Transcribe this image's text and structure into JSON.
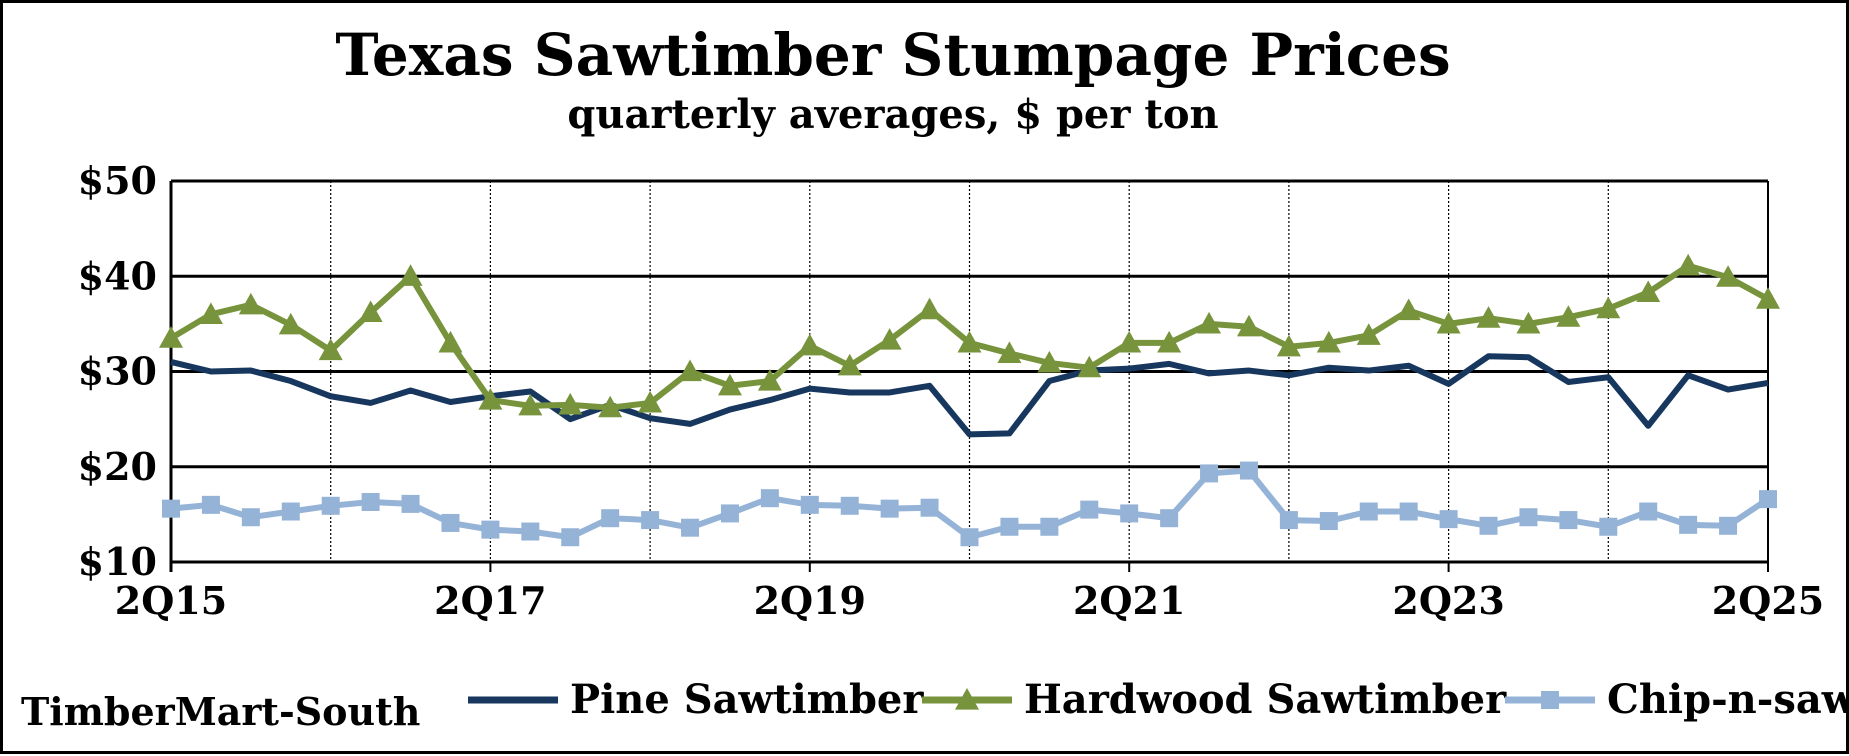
{
  "chart_data": {
    "type": "line",
    "title": "Texas Sawtimber Stumpage Prices",
    "subtitle": "quarterly averages, $ per ton",
    "source": "TimberMart-South",
    "ylim": [
      10,
      50
    ],
    "yticks": [
      10,
      20,
      30,
      40,
      50
    ],
    "ytick_labels": [
      "$10",
      "$20",
      "$30",
      "$40",
      "$50"
    ],
    "xtick_labels": [
      "2Q15",
      "2Q17",
      "2Q19",
      "2Q21",
      "2Q23",
      "2Q25"
    ],
    "x": [
      "2Q15",
      "3Q15",
      "4Q15",
      "1Q16",
      "2Q16",
      "3Q16",
      "4Q16",
      "1Q17",
      "2Q17",
      "3Q17",
      "4Q17",
      "1Q18",
      "2Q18",
      "3Q18",
      "4Q18",
      "1Q19",
      "2Q19",
      "3Q19",
      "4Q19",
      "1Q20",
      "2Q20",
      "3Q20",
      "4Q20",
      "1Q21",
      "2Q21",
      "3Q21",
      "4Q21",
      "1Q22",
      "2Q22",
      "3Q22",
      "4Q22",
      "1Q23",
      "2Q23",
      "3Q23",
      "4Q23",
      "1Q24",
      "2Q24",
      "3Q24",
      "4Q24",
      "1Q25",
      "2Q25"
    ],
    "grid": "horizontal solid; vertical dotted at each year",
    "legend_position": "bottom",
    "series": [
      {
        "name": "Pine Sawtimber",
        "color": "#17375e",
        "marker": "none",
        "values": [
          31.0,
          30.0,
          30.1,
          29.0,
          27.4,
          26.7,
          28.0,
          26.8,
          27.4,
          27.9,
          25.0,
          26.5,
          25.1,
          24.5,
          26.0,
          27.0,
          28.2,
          27.8,
          27.8,
          28.5,
          23.4,
          23.5,
          29.0,
          30.1,
          30.3,
          30.8,
          29.8,
          30.1,
          29.6,
          30.4,
          30.1,
          30.6,
          28.7,
          31.6,
          31.5,
          28.9,
          29.4,
          24.3,
          29.6,
          28.1,
          28.8
        ]
      },
      {
        "name": "Hardwood Sawtimber",
        "color": "#77933c",
        "marker": "triangle",
        "values": [
          33.5,
          36.0,
          37.0,
          34.9,
          32.2,
          36.2,
          40.0,
          33.0,
          27.0,
          26.4,
          26.5,
          26.2,
          26.7,
          30.0,
          28.5,
          29.0,
          32.7,
          30.6,
          33.3,
          36.5,
          33.0,
          31.9,
          30.9,
          30.4,
          33.0,
          33.0,
          35.0,
          34.7,
          32.6,
          33.0,
          33.8,
          36.4,
          35.0,
          35.6,
          35.0,
          35.7,
          36.6,
          38.3,
          41.1,
          39.9,
          37.6
        ]
      },
      {
        "name": "Chip-n-saw",
        "color": "#95b3d7",
        "marker": "square",
        "values": [
          15.6,
          16.0,
          14.7,
          15.3,
          15.9,
          16.3,
          16.1,
          14.1,
          13.4,
          13.2,
          12.6,
          14.6,
          14.4,
          13.6,
          15.1,
          16.7,
          16.0,
          15.9,
          15.6,
          15.7,
          12.6,
          13.7,
          13.7,
          15.5,
          15.1,
          14.6,
          19.3,
          19.6,
          14.4,
          14.3,
          15.3,
          15.3,
          14.5,
          13.8,
          14.7,
          14.4,
          13.7,
          15.3,
          13.9,
          13.8,
          16.6
        ]
      }
    ]
  },
  "colors": {
    "pine": "#17375e",
    "hardwood": "#77933c",
    "chip": "#95b3d7",
    "grid": "#000000"
  }
}
